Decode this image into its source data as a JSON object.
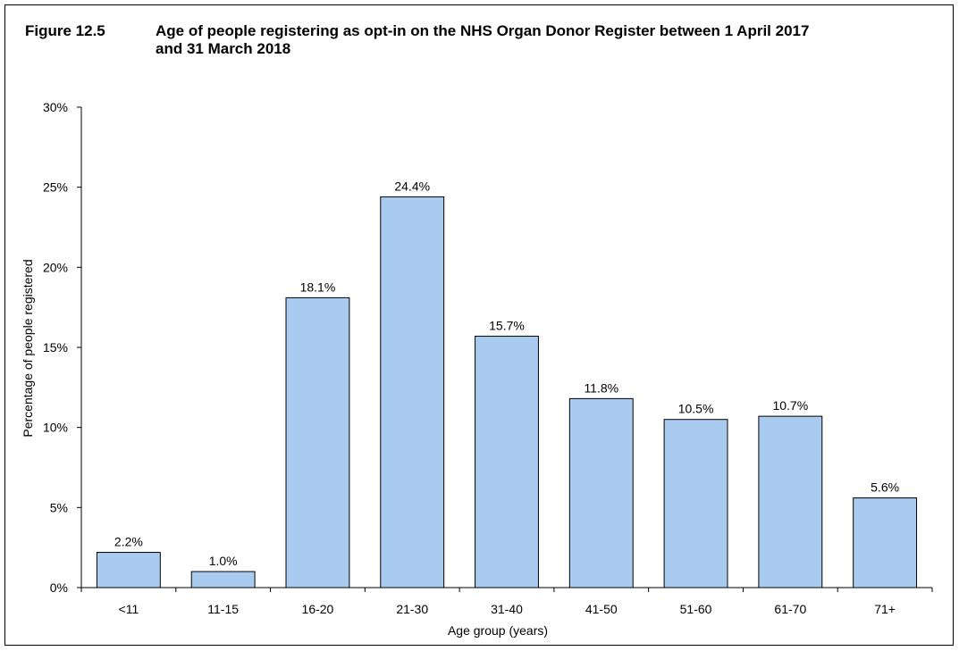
{
  "figure": {
    "number": "Figure 12.5",
    "title": "Age of people registering as opt-in on the NHS Organ Donor Register between 1 April 2017 and 31 March 2018"
  },
  "chart_data": {
    "type": "bar",
    "title": "Age of people registering as opt-in on the NHS Organ Donor Register between 1 April 2017 and 31 March 2018",
    "xlabel": "Age group (years)",
    "ylabel": "Percentage of people registered",
    "categories": [
      "<11",
      "11-15",
      "16-20",
      "21-30",
      "31-40",
      "41-50",
      "51-60",
      "61-70",
      "71+"
    ],
    "values": [
      2.2,
      1.0,
      18.1,
      24.4,
      15.7,
      11.8,
      10.5,
      10.7,
      5.6
    ],
    "data_labels": [
      "2.2%",
      "1.0%",
      "18.1%",
      "24.4%",
      "15.7%",
      "11.8%",
      "10.5%",
      "10.7%",
      "5.6%"
    ],
    "ylim": [
      0,
      30
    ],
    "yticks": [
      0,
      5,
      10,
      15,
      20,
      25,
      30
    ],
    "ytick_labels": [
      "0%",
      "5%",
      "10%",
      "15%",
      "20%",
      "25%",
      "30%"
    ],
    "bar_color": "#a9cbf0",
    "grid": false,
    "legend": "none"
  }
}
